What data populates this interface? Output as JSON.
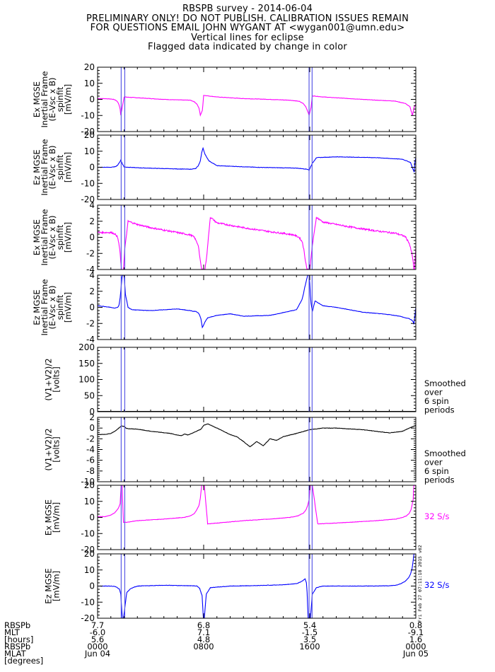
{
  "header": {
    "lines": [
      "RBSPB survey - 2014-06-04",
      "PRELIMINARY ONLY! DO NOT PUBLISH. CALIBRATION ISSUES REMAIN",
      "FOR QUESTIONS EMAIL JOHN WYGANT AT <wygan001@umn.edu>",
      "Vertical lines for eclipse",
      "Flagged data indicated by change in color"
    ]
  },
  "colors": {
    "magenta": "#ff00ff",
    "blue": "#0000ff",
    "black": "#000000",
    "eclipse": "#5a5ae6"
  },
  "chart_data": [
    {
      "type": "line",
      "ylabel": [
        "Ex MGSE",
        "Inertial Frame",
        "(E-Vsc x B)",
        "spinfit",
        "[mV/m]"
      ],
      "ylim": [
        -20,
        20
      ],
      "yticks": [
        -20,
        -10,
        0,
        10,
        20
      ],
      "color": "#ff00ff",
      "series": [
        {
          "x": [
            0,
            0.4,
            0.9,
            1.2,
            1.35,
            1.5,
            1.6,
            1.7,
            1.75,
            2.0,
            3.0,
            5.0,
            6.0,
            7.0,
            7.3,
            7.5,
            7.65,
            7.75,
            7.9,
            8.0,
            9,
            11,
            13,
            14.5,
            15.2,
            15.5,
            15.7,
            15.85,
            15.95,
            16.1,
            16.2,
            17,
            19,
            21,
            22.4,
            23.2,
            23.55,
            23.75,
            23.85,
            23.92,
            24
          ],
          "y": [
            0.5,
            0.5,
            0.3,
            0,
            -0.4,
            -1.4,
            -3,
            -6,
            -9.8,
            1.5,
            1,
            0,
            -0.3,
            -0.5,
            -1.5,
            -3,
            -5.5,
            -9.8,
            -7,
            2.5,
            1.5,
            0.5,
            0,
            -0.5,
            -1.2,
            -2.5,
            -4.5,
            -7.5,
            -9.8,
            -5,
            2.2,
            1.5,
            0.5,
            -0.5,
            -1,
            -2.5,
            -4.5,
            -10,
            -5.5,
            -4,
            -3
          ]
        }
      ]
    },
    {
      "type": "line",
      "ylabel": [
        "Ez MGSE",
        "Inertial Frame",
        "(E-Vsc x B)",
        "spinfit",
        "[mV/m]"
      ],
      "ylim": [
        -20,
        20
      ],
      "yticks": [
        -20,
        -10,
        0,
        10,
        20
      ],
      "color": "#0000ff",
      "series": [
        {
          "x": [
            0,
            1.0,
            1.3,
            1.5,
            1.65,
            1.75,
            1.85,
            2.0,
            3,
            5,
            7,
            7.4,
            7.6,
            7.75,
            7.85,
            7.95,
            8.1,
            8.4,
            9,
            12,
            15,
            15.6,
            15.8,
            15.9,
            15.95,
            16.05,
            16.2,
            16.5,
            18,
            21,
            23,
            23.6,
            23.8,
            23.88,
            23.93,
            24
          ],
          "y": [
            0,
            0,
            0.3,
            1.2,
            3,
            4.5,
            2.5,
            0.2,
            -0.3,
            -0.8,
            -1.2,
            -0.8,
            1,
            4,
            9,
            12,
            8,
            4,
            1,
            0,
            -0.5,
            -1,
            -1.2,
            -1.5,
            -2,
            0,
            2.5,
            6,
            6.5,
            6,
            5,
            3,
            -1.5,
            -3,
            3,
            6
          ]
        }
      ]
    },
    {
      "type": "line",
      "ylabel": [
        "Ex MGSE",
        "Inertial Frame",
        "(E-Vsc x B)",
        "spinfit",
        "[mV/m]"
      ],
      "ylim": [
        -4,
        4
      ],
      "yticks": [
        -4,
        -2,
        0,
        2,
        4
      ],
      "color": "#ff00ff",
      "series": [
        {
          "x": [
            0,
            0.5,
            1.0,
            1.2,
            1.4,
            1.5,
            1.6,
            1.7,
            1.75,
            1.8,
            1.95,
            2.05,
            2.3,
            3,
            4,
            6,
            7.0,
            7.3,
            7.6,
            7.75,
            7.85,
            7.95,
            8.0,
            8.1,
            8.25,
            8.5,
            9,
            11,
            13,
            14,
            14.8,
            15.2,
            15.45,
            15.55,
            15.65,
            15.75,
            15.8,
            15.9,
            16.0,
            16.2,
            16.5,
            17,
            19,
            21,
            22.5,
            23.2,
            23.5,
            23.7,
            23.8,
            23.85,
            23.9,
            24
          ],
          "y": [
            0.6,
            0.6,
            0.6,
            0.5,
            0.3,
            0,
            -0.7,
            -2,
            -3,
            -4,
            -4,
            -1.5,
            2,
            1.6,
            1.2,
            0.6,
            0.3,
            0,
            -1,
            -3,
            -4,
            -4,
            -4,
            -4,
            -2,
            2.5,
            1.8,
            1.2,
            0.7,
            0.5,
            0.3,
            0,
            -0.6,
            -1.5,
            -2.6,
            -3.6,
            -4,
            -4,
            -4,
            -1,
            2.5,
            1.9,
            1.3,
            0.8,
            0.5,
            0.1,
            -0.7,
            -2,
            -3,
            -4,
            -4,
            -1.3
          ]
        }
      ]
    },
    {
      "type": "line",
      "ylabel": [
        "Ez MGSE",
        "Inertial Frame",
        "(E-Vsc x B)",
        "spinfit",
        "[mV/m]"
      ],
      "ylim": [
        -4,
        4
      ],
      "yticks": [
        -4,
        -2,
        0,
        2,
        4
      ],
      "color": "#0000ff",
      "series": [
        {
          "x": [
            0,
            1.0,
            1.3,
            1.5,
            1.6,
            1.65,
            1.7,
            1.75,
            1.8,
            1.85,
            1.9,
            1.95,
            2.0,
            2.1,
            2.3,
            2.6,
            4,
            6,
            7,
            7.2,
            7.4,
            7.5,
            7.6,
            7.7,
            7.75,
            7.8,
            7.85,
            7.9,
            8.0,
            8.1,
            8.3,
            9,
            10,
            11,
            13,
            15,
            15.2,
            15.4,
            15.5,
            15.6,
            15.7,
            15.8,
            15.85,
            15.9,
            15.95,
            16.0,
            16.05,
            16.1,
            16.2,
            16.4,
            16.7,
            17,
            18,
            20,
            22,
            22.8,
            23.2,
            23.5,
            23.7,
            23.8,
            23.85,
            23.9,
            24
          ],
          "y": [
            0.2,
            0,
            -0.1,
            0,
            0.2,
            0.6,
            1.2,
            2,
            3,
            3.8,
            4,
            4,
            4,
            1.6,
            0,
            -0.3,
            -0.4,
            -0.2,
            -0.4,
            -0.5,
            -0.5,
            -0.6,
            -0.7,
            -1,
            -1.2,
            -1.5,
            -2,
            -2.5,
            -2.2,
            -1.8,
            -1.3,
            -1,
            -0.8,
            -1.1,
            -1.0,
            -0.3,
            0.3,
            0.9,
            1.5,
            2.3,
            3,
            3.7,
            4,
            4,
            4,
            3,
            1.5,
            0.5,
            -0.5,
            0.8,
            0.5,
            0.2,
            0,
            -0.6,
            -0.9,
            -1.1,
            -1.3,
            -1.4,
            -1.6,
            -1.8,
            -2.1,
            -1.5,
            0
          ]
        }
      ]
    },
    {
      "type": "line",
      "ylabel": [
        "(V1+V2)/2",
        "[volts]"
      ],
      "ylim": [
        0,
        200
      ],
      "yticks": [
        0,
        50,
        100,
        150,
        200
      ],
      "color": "#000000",
      "annotation": [
        "Smoothed",
        "over",
        "6 spin",
        "periods"
      ],
      "series": [
        {
          "x": [
            0,
            24
          ],
          "y": [
            1,
            1
          ]
        }
      ]
    },
    {
      "type": "line",
      "ylabel": [
        "(V1+V2)/2",
        "[volts]"
      ],
      "ylim": [
        -10,
        2
      ],
      "yticks": [
        -10,
        -8,
        -6,
        -4,
        -2,
        0,
        2
      ],
      "color": "#000000",
      "annotation": [
        "Smoothed",
        "over",
        "6 spin",
        "periods"
      ],
      "series": [
        {
          "x": [
            0,
            0.5,
            1.0,
            1.3,
            1.6,
            1.8,
            2.0,
            2.2,
            3,
            4.0,
            5.5,
            6.0,
            6.3,
            6.6,
            6.8,
            7.2,
            7.8,
            8.0,
            8.3,
            9,
            10,
            10.5,
            11,
            11.5,
            12.0,
            12.5,
            13.0,
            13.5,
            14,
            15,
            16,
            17,
            18,
            20,
            22,
            23,
            23.5,
            24
          ],
          "y": [
            -1.2,
            -1.2,
            -1.0,
            -0.6,
            0,
            0.4,
            0.3,
            -0.1,
            -0.2,
            -0.6,
            -1.0,
            -1.3,
            -1.4,
            -1.1,
            -1.3,
            -0.9,
            -0.2,
            0.5,
            0.8,
            0,
            -1.2,
            -1.6,
            -2.5,
            -3.5,
            -2.5,
            -3.3,
            -2.0,
            -2.3,
            -1.6,
            -1.0,
            -0.3,
            0,
            0,
            -0.3,
            -0.9,
            -0.6,
            0,
            0.5
          ]
        }
      ]
    },
    {
      "type": "line",
      "ylabel": [
        "Ex MGSE",
        "[mV/m]"
      ],
      "ylim": [
        -20,
        20
      ],
      "yticks": [
        -20,
        -10,
        0,
        10,
        20
      ],
      "color": "#ff00ff",
      "annotation": [
        "32 S/s"
      ],
      "series": [
        {
          "x": [
            0,
            0.6,
            1.0,
            1.3,
            1.55,
            1.7,
            1.78,
            1.85,
            1.95,
            2.2,
            3,
            5,
            6.5,
            7.0,
            7.3,
            7.5,
            7.65,
            7.75,
            7.85,
            7.95,
            8.05,
            8.3,
            9,
            11,
            13,
            14.5,
            15.1,
            15.5,
            15.7,
            15.85,
            15.95,
            16.05,
            16.2,
            16.6,
            18,
            21,
            22.5,
            23.0,
            23.3,
            23.5,
            23.65,
            23.8,
            23.85,
            24
          ],
          "y": [
            0.5,
            0.5,
            1.5,
            3,
            5.5,
            8.5,
            20,
            20,
            -3,
            -3,
            -2,
            -1,
            0,
            1,
            2.5,
            5,
            7.5,
            12,
            20,
            20,
            20,
            -4,
            -3.5,
            -2,
            -1,
            0,
            1,
            2.5,
            4.5,
            7.5,
            11,
            20,
            20,
            -4,
            -3.5,
            -2,
            -1,
            0,
            1,
            2.5,
            5,
            11,
            20,
            20
          ]
        }
      ]
    },
    {
      "type": "line",
      "ylabel": [
        "Ez MGSE",
        "[mV/m]"
      ],
      "ylim": [
        -20,
        20
      ],
      "yticks": [
        -20,
        -10,
        0,
        10,
        20
      ],
      "color": "#0000ff",
      "annotation": [
        "32 S/s"
      ],
      "series": [
        {
          "x": [
            0,
            0.5,
            1.0,
            1.3,
            1.5,
            1.65,
            1.75,
            1.8,
            1.87,
            1.95,
            2.05,
            2.2,
            2.5,
            3,
            5,
            7,
            7.5,
            7.7,
            7.78,
            7.88,
            7.98,
            8.05,
            8.2,
            8.5,
            10,
            12,
            14,
            15,
            15.3,
            15.5,
            15.65,
            15.75,
            15.8,
            15.88,
            15.98,
            16.05,
            16.2,
            16.5,
            17,
            19,
            21,
            22,
            22.5,
            22.9,
            23.2,
            23.45,
            23.6,
            23.72,
            23.8,
            23.86,
            23.95,
            24
          ],
          "y": [
            0,
            0,
            0,
            -0.3,
            -1,
            -2,
            -5,
            -12,
            -20,
            -20,
            -14,
            -4,
            -1.5,
            0,
            0.5,
            0.2,
            0,
            -1.5,
            -3.5,
            -6,
            -20,
            -20,
            -5,
            -1,
            0,
            0.3,
            0.8,
            1.5,
            2.5,
            3.5,
            4.5,
            2,
            -4,
            -20,
            -20,
            -20,
            -5,
            -1,
            0,
            0,
            0,
            0.2,
            0.5,
            1.5,
            3,
            5,
            7.5,
            11,
            16,
            20,
            20,
            20
          ]
        }
      ]
    }
  ],
  "xaxis": {
    "range_hours": [
      0,
      24
    ],
    "tick_hours": [
      0,
      8,
      16,
      24
    ],
    "eclipse_hours": [
      [
        1.78,
        2.05
      ],
      [
        15.95,
        16.18
      ]
    ],
    "row_labels": [
      "RBSPb",
      "MLT",
      "[hours]",
      "RBSPb",
      "MLAT",
      "[degrees]"
    ],
    "tick_columns": [
      [
        "7.7",
        "-6.0",
        "5.6",
        "0000",
        "Jun 04"
      ],
      [
        "6.8",
        "7.1",
        "4.8",
        "0800",
        ""
      ],
      [
        "5.4",
        "-1.5",
        "3.5",
        "1600",
        ""
      ],
      [
        "0.8",
        "-9.1",
        "1.6",
        "0000",
        "Jun 05"
      ]
    ]
  },
  "stamp": "Fri Feb 27 07:11:18 2015 v02"
}
